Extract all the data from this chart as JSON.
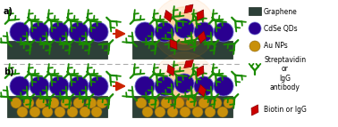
{
  "bg_color": "#ffffff",
  "graphene_color": "#2d4038",
  "graphene_border": "#1a2a20",
  "qd_color": "#2a0090",
  "qd_edge": "#6666cc",
  "au_color": "#c8900a",
  "au_edge": "#8B6510",
  "strep_color": "#1a8a00",
  "analyte_color": "#cc0000",
  "glow_color": "#ff8800",
  "arrow_color": "#cc2200",
  "dashed_color": "#aaaaaa",
  "label_a": "a)",
  "label_b": "b)",
  "legend_graphene_label": "Graphene",
  "legend_qd_label": "CdSe QDs",
  "legend_au_label": "Au NPs",
  "legend_strep_label": "Streptavidin\nor\nIgG\nantibody",
  "legend_analyte_label": "Biotin or IgG",
  "fig_width": 3.78,
  "fig_height": 1.43,
  "dpi": 100
}
